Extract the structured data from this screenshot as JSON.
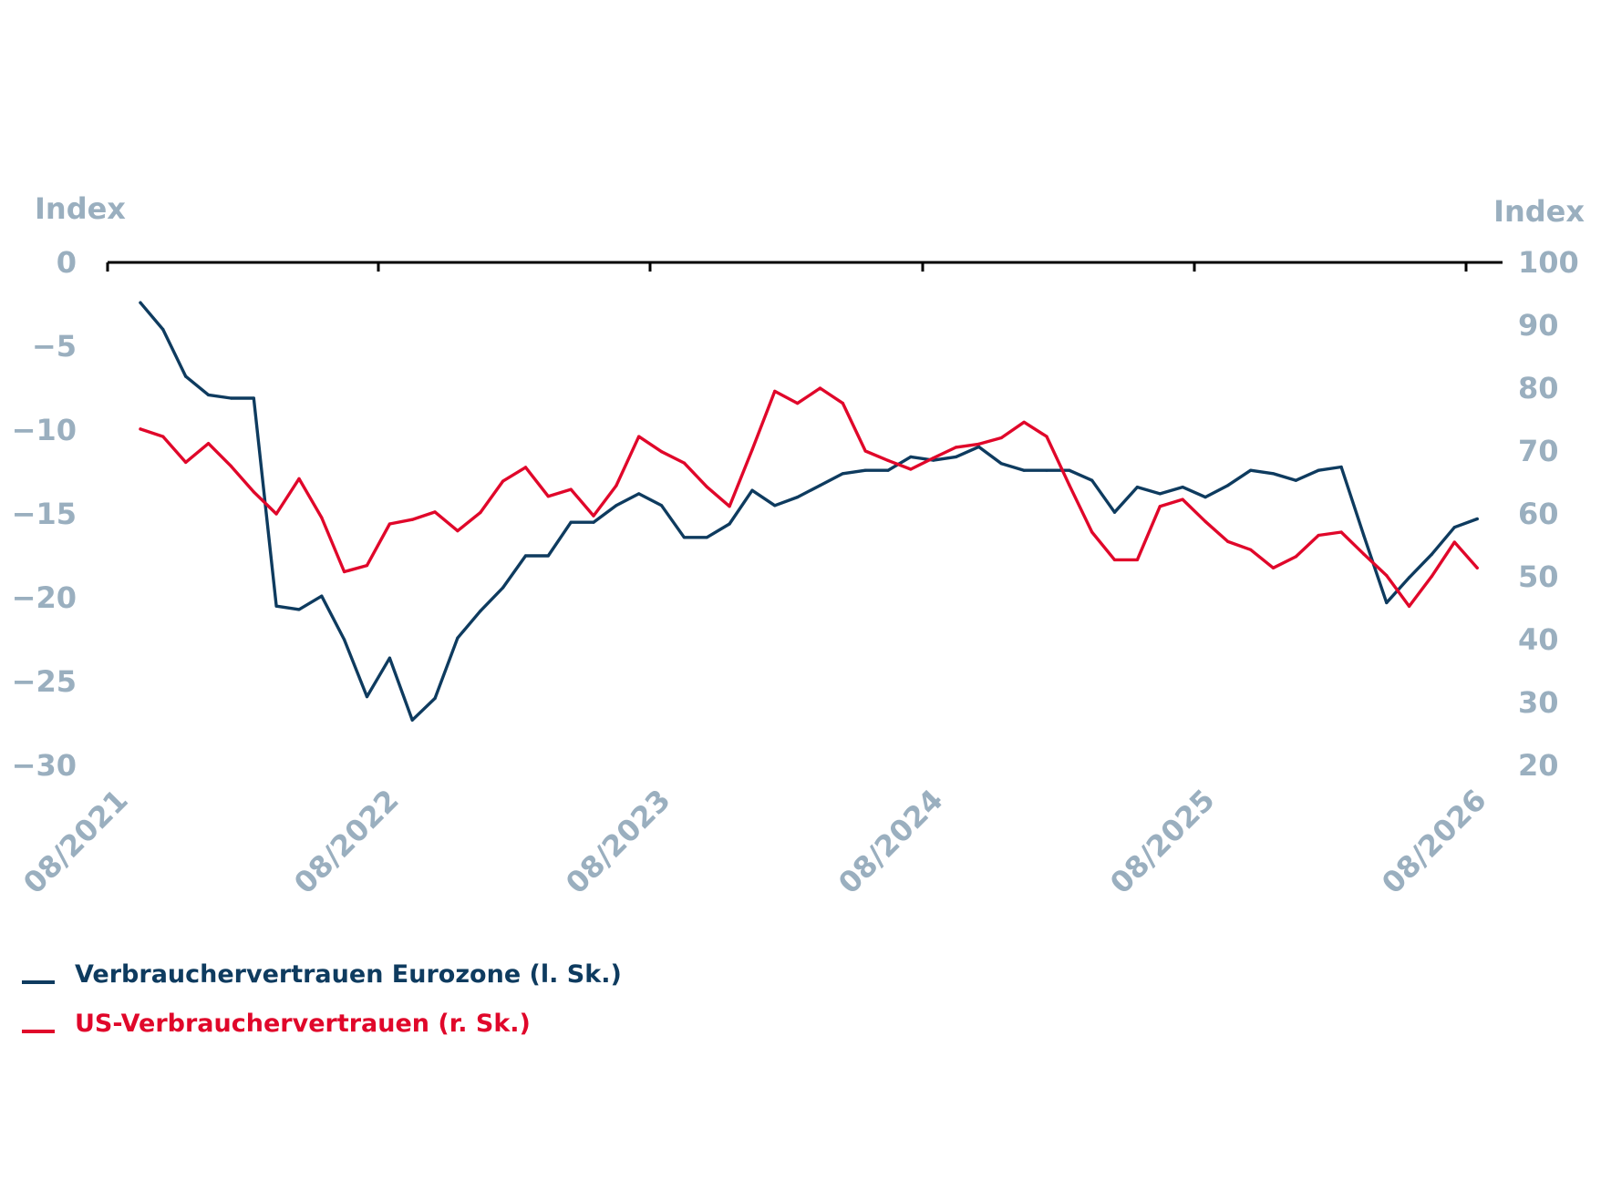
{
  "chart_data": {
    "type": "line",
    "left_axis": {
      "title": "Index",
      "ticks": [
        "0",
        "−5",
        "−10",
        "−15",
        "−20",
        "−25",
        "−30"
      ],
      "range": [
        -30,
        0
      ]
    },
    "right_axis": {
      "title": "Index",
      "ticks": [
        "100",
        "90",
        "80",
        "70",
        "60",
        "50",
        "40",
        "30",
        "20"
      ],
      "range": [
        20,
        100
      ]
    },
    "x_tick_labels": [
      "08/2021",
      "08/2022",
      "08/2023",
      "08/2024",
      "08/2025",
      "08/2026"
    ],
    "x_range": [
      "08/2021",
      "08/2026"
    ],
    "grid": false,
    "legend_position": "bottom-left",
    "series": [
      {
        "name": "Verbrauchervertrauen Eurozone (l. Sk.)",
        "axis": "left",
        "color": "#0e3b5f",
        "values": [
          -2.4,
          -4.0,
          -6.8,
          -7.9,
          -8.1,
          -8.1,
          -20.5,
          -20.7,
          -19.9,
          -22.5,
          -25.9,
          -23.6,
          -27.3,
          -26.0,
          -22.4,
          -20.8,
          -19.4,
          -17.5,
          -17.5,
          -15.5,
          -15.5,
          -14.5,
          -13.8,
          -14.5,
          -16.4,
          -16.4,
          -15.6,
          -13.6,
          -14.5,
          -14.0,
          -13.3,
          -12.6,
          -12.4,
          -12.4,
          -11.6,
          -11.8,
          -11.6,
          -11.0,
          -12.0,
          -12.4,
          -12.4,
          -12.4,
          -13.0,
          -14.9,
          -13.4,
          -13.8,
          -13.4,
          -14.0,
          -13.3,
          -12.4,
          -12.6,
          -13.0,
          -12.4,
          -12.2,
          -16.3,
          -20.3,
          -18.8,
          -17.4,
          -15.8,
          -15.3
        ]
      },
      {
        "name": "US-Verbrauchervertrauen (r. Sk.)",
        "axis": "right",
        "color": "#e0072a",
        "values": [
          73.5,
          72.3,
          68.2,
          71.2,
          67.6,
          63.5,
          60.0,
          65.6,
          59.4,
          50.8,
          51.8,
          58.4,
          59.1,
          60.3,
          57.3,
          60.2,
          65.2,
          67.4,
          62.8,
          63.9,
          59.7,
          64.5,
          72.3,
          69.9,
          68.1,
          64.3,
          61.2,
          70.2,
          79.5,
          77.6,
          80.0,
          77.6,
          70.0,
          68.5,
          67.1,
          68.9,
          70.6,
          71.1,
          72.1,
          74.6,
          72.3,
          64.6,
          57.1,
          52.7,
          52.7,
          61.2,
          62.3,
          58.8,
          55.6,
          54.3,
          51.4,
          53.2,
          56.6,
          57.1,
          53.6,
          50.2,
          45.3,
          50.1,
          55.5,
          51.4
        ]
      }
    ]
  }
}
